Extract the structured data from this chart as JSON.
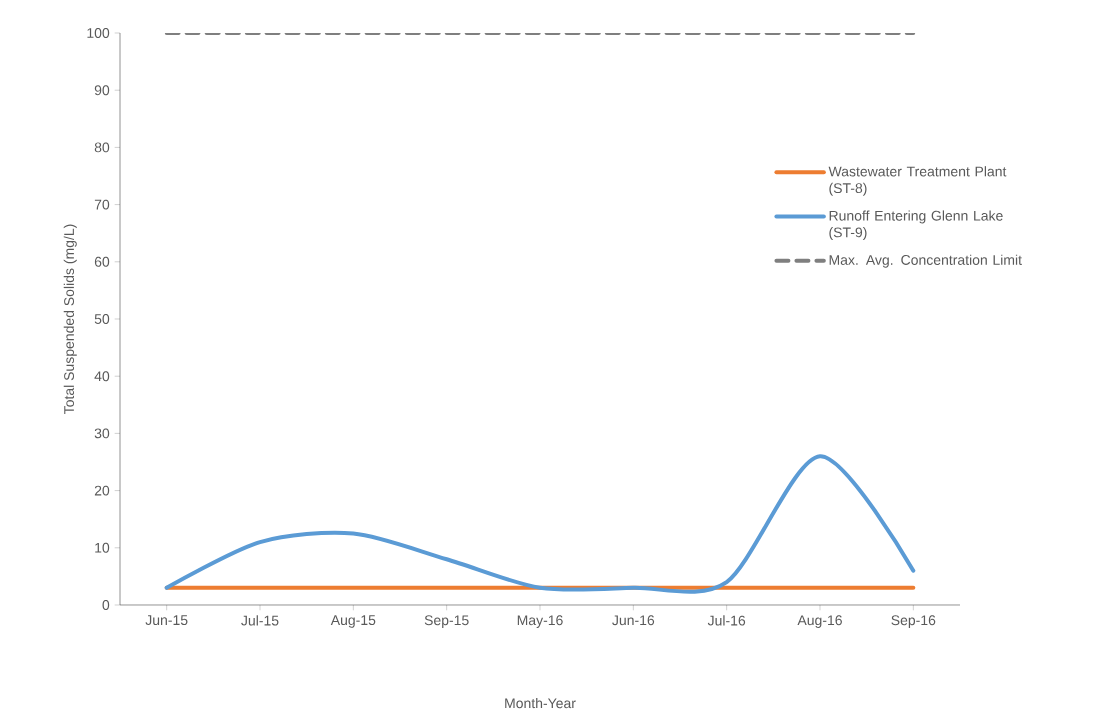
{
  "chart_data": {
    "type": "line",
    "xlabel": "Month-Year",
    "ylabel": "Total Suspended Solids (mg/L)",
    "categories": [
      "Jun-15",
      "Jul-15",
      "Aug-15",
      "Sep-15",
      "May-16",
      "Jun-16",
      "Jul-16",
      "Aug-16",
      "Sep-16"
    ],
    "series": [
      {
        "name": "Wastewater Treatment Plant (ST-8)",
        "color": "#ed7d31",
        "line_style": "solid",
        "values": [
          3,
          3,
          3,
          3,
          3,
          3,
          3,
          3,
          3
        ]
      },
      {
        "name": "Runoff Entering Glenn Lake (ST-9)",
        "color": "#5b9bd5",
        "line_style": "solid",
        "values": [
          3,
          11,
          12.5,
          8,
          3,
          3,
          4,
          26,
          6
        ]
      },
      {
        "name": "Max. Avg. Concentration Limit",
        "color": "#7f7f7f",
        "line_style": "dashed",
        "values": [
          100,
          100,
          100,
          100,
          100,
          100,
          100,
          100,
          100
        ]
      }
    ],
    "ylim": [
      0,
      100
    ],
    "yticks": [
      0,
      10,
      20,
      30,
      40,
      50,
      60,
      70,
      80,
      90,
      100
    ],
    "legend": "right",
    "marker": "none"
  }
}
